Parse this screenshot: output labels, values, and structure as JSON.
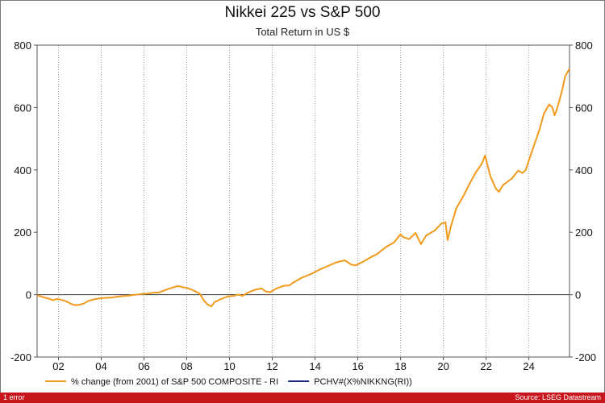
{
  "chart_data": {
    "type": "line",
    "title": "Nikkei 225 vs S&P 500",
    "subtitle": "Total Return in US $",
    "xlabel": "",
    "ylabel": "",
    "ylim": [
      -200,
      800
    ],
    "xlim": [
      2001.0,
      2025.9
    ],
    "y_ticks": [
      -200,
      0,
      200,
      400,
      600,
      800
    ],
    "x_ticks": [
      {
        "value": 2002,
        "label": "02"
      },
      {
        "value": 2004,
        "label": "04"
      },
      {
        "value": 2006,
        "label": "06"
      },
      {
        "value": 2008,
        "label": "08"
      },
      {
        "value": 2010,
        "label": "10"
      },
      {
        "value": 2012,
        "label": "12"
      },
      {
        "value": 2014,
        "label": "14"
      },
      {
        "value": 2016,
        "label": "16"
      },
      {
        "value": 2018,
        "label": "18"
      },
      {
        "value": 2020,
        "label": "20"
      },
      {
        "value": 2022,
        "label": "22"
      },
      {
        "value": 2024,
        "label": "24"
      }
    ],
    "grid": true,
    "legend_position": "bottom",
    "series": [
      {
        "name": "% change (from 2001) of S&P 500 COMPOSITE - RI",
        "color": "#f29a1c",
        "x": [
          2001.0,
          2001.2,
          2001.4,
          2001.6,
          2001.75,
          2001.9,
          2002.1,
          2002.3,
          2002.5,
          2002.6,
          2002.8,
          2003.0,
          2003.2,
          2003.4,
          2003.6,
          2003.9,
          2004.2,
          2004.5,
          2004.8,
          2005.0,
          2005.3,
          2005.6,
          2005.9,
          2006.2,
          2006.4,
          2006.7,
          2007.0,
          2007.3,
          2007.6,
          2007.8,
          2008.0,
          2008.3,
          2008.6,
          2008.8,
          2008.95,
          2009.15,
          2009.3,
          2009.6,
          2009.9,
          2010.2,
          2010.4,
          2010.6,
          2010.9,
          2011.2,
          2011.5,
          2011.7,
          2011.9,
          2012.2,
          2012.5,
          2012.8,
          2013.0,
          2013.4,
          2013.8,
          2014.2,
          2014.6,
          2015.0,
          2015.4,
          2015.7,
          2015.9,
          2016.2,
          2016.6,
          2016.9,
          2017.3,
          2017.7,
          2018.0,
          2018.1,
          2018.4,
          2018.7,
          2018.95,
          2019.2,
          2019.6,
          2019.9,
          2020.1,
          2020.2,
          2020.35,
          2020.6,
          2020.9,
          2021.2,
          2021.5,
          2021.8,
          2021.95,
          2022.2,
          2022.45,
          2022.6,
          2022.8,
          2023.0,
          2023.2,
          2023.5,
          2023.7,
          2023.85,
          2024.0,
          2024.2,
          2024.5,
          2024.7,
          2024.95,
          2025.1,
          2025.2,
          2025.3,
          2025.5,
          2025.7,
          2025.9
        ],
        "values": [
          -2,
          -6,
          -10,
          -14,
          -18,
          -14,
          -16,
          -20,
          -26,
          -30,
          -34,
          -32,
          -28,
          -20,
          -16,
          -12,
          -10,
          -9,
          -6,
          -5,
          -3,
          0,
          2,
          4,
          6,
          7,
          15,
          22,
          28,
          24,
          22,
          14,
          4,
          -18,
          -30,
          -38,
          -24,
          -14,
          -6,
          -4,
          0,
          -4,
          8,
          16,
          20,
          10,
          8,
          20,
          28,
          30,
          40,
          55,
          66,
          80,
          92,
          104,
          110,
          96,
          94,
          104,
          120,
          130,
          152,
          168,
          194,
          185,
          178,
          198,
          162,
          190,
          206,
          228,
          232,
          175,
          218,
          276,
          312,
          352,
          390,
          420,
          446,
          380,
          340,
          330,
          352,
          362,
          372,
          398,
          390,
          400,
          430,
          470,
          530,
          580,
          610,
          600,
          575,
          592,
          640,
          700,
          725
        ]
      },
      {
        "name": "PCHV#(X%NIKKNG(RI))",
        "color": "#1a237e",
        "x": [],
        "values": []
      }
    ]
  },
  "status": {
    "left": "1 error",
    "right": "Source: LSEG Datastream"
  }
}
